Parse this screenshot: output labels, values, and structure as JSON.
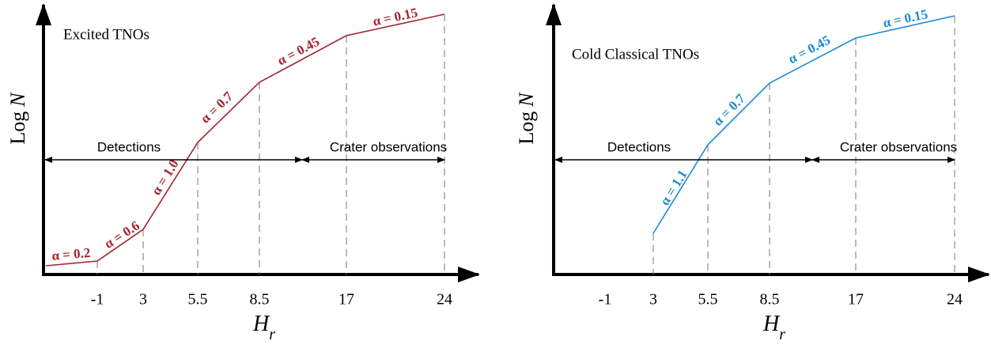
{
  "panels": [
    {
      "title": "Excited TNOs",
      "y_label": {
        "text": "Log",
        "variable": "N"
      },
      "x_label": {
        "symbol": "H",
        "subscript": "r"
      },
      "x_ticks": [
        "-1",
        "3",
        "5.5",
        "8.5",
        "17",
        "24"
      ],
      "regions": [
        "Detections",
        "Crater observations"
      ],
      "segments": [
        "α = 0.2",
        "α = 0.6",
        "α = 1.0",
        "α = 0.7",
        "α = 0.45",
        "α = 0.15"
      ]
    },
    {
      "title": "Cold Classical TNOs",
      "y_label": {
        "text": "Log",
        "variable": "N"
      },
      "x_label": {
        "symbol": "H",
        "subscript": "r"
      },
      "x_ticks": [
        "-1",
        "3",
        "5.5",
        "8.5",
        "17",
        "24"
      ],
      "regions": [
        "Detections",
        "Crater observations"
      ],
      "segments": [
        "α = 1.1",
        "α = 0.7",
        "α = 0.45",
        "α = 0.15"
      ]
    }
  ]
}
